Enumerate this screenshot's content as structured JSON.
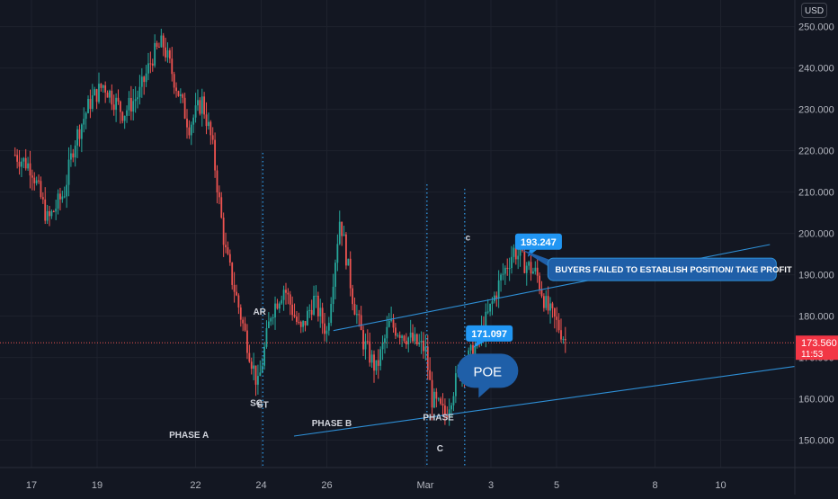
{
  "currency": "USD",
  "price_badge": {
    "price": "173.560",
    "timer": "11:53"
  },
  "chart_data": {
    "type": "candlestick",
    "title": "",
    "ylim": [
      143,
      256
    ],
    "yticks": [
      "150.000",
      "160.000",
      "170.000",
      "180.000",
      "190.000",
      "200.000",
      "210.000",
      "220.000",
      "230.000",
      "240.000",
      "250.000"
    ],
    "xticks": [
      "17",
      "19",
      "22",
      "24",
      "26",
      "Mar",
      "3",
      "5",
      "8",
      "10"
    ],
    "x_days": [
      0,
      2,
      5,
      7,
      9,
      12,
      14,
      16,
      19,
      21
    ],
    "price_path": [
      [
        -0.5,
        219
      ],
      [
        0,
        216
      ],
      [
        0.5,
        203
      ],
      [
        1,
        210
      ],
      [
        1.3,
        222
      ],
      [
        1.8,
        232
      ],
      [
        2.2,
        236
      ],
      [
        2.8,
        229
      ],
      [
        3.3,
        234
      ],
      [
        3.7,
        243
      ],
      [
        4,
        246
      ],
      [
        4.4,
        236
      ],
      [
        4.8,
        226
      ],
      [
        5.2,
        232
      ],
      [
        5.5,
        222
      ],
      [
        5.9,
        196
      ],
      [
        6.2,
        186
      ],
      [
        6.5,
        176
      ],
      [
        6.9,
        163
      ],
      [
        7.3,
        181
      ],
      [
        7.7,
        187
      ],
      [
        8.2,
        176
      ],
      [
        8.6,
        184
      ],
      [
        9,
        176
      ],
      [
        9.4,
        204
      ],
      [
        9.8,
        184
      ],
      [
        10.1,
        174
      ],
      [
        10.5,
        167
      ],
      [
        10.9,
        178
      ],
      [
        11.3,
        176
      ],
      [
        11.6,
        174
      ],
      [
        12,
        172
      ],
      [
        12.2,
        160
      ],
      [
        12.6,
        156
      ],
      [
        13,
        166
      ],
      [
        13.5,
        172
      ],
      [
        13.9,
        180
      ],
      [
        14.3,
        189
      ],
      [
        14.7,
        196
      ],
      [
        15,
        193
      ],
      [
        15.4,
        190
      ],
      [
        15.7,
        182
      ],
      [
        16.1,
        177
      ],
      [
        16.3,
        173.56
      ]
    ],
    "channel_upper": [
      [
        9.2,
        176.5
      ],
      [
        22.5,
        197.3
      ]
    ],
    "channel_lower": [
      [
        8.0,
        151
      ],
      [
        28.2,
        173.3
      ]
    ],
    "price_line": 173.56,
    "vlines": [
      7.05,
      12.05,
      13.2
    ],
    "annotations": [
      {
        "text": "SC",
        "x": 6.85,
        "y": 158.3
      },
      {
        "text": "ST",
        "x": 7.05,
        "y": 157.8
      },
      {
        "text": "AR",
        "x": 6.95,
        "y": 180.3
      },
      {
        "text": "PHASE A",
        "x": 4.8,
        "y": 150.6
      },
      {
        "text": "PHASE B",
        "x": 9.15,
        "y": 153.4
      },
      {
        "text": "PHASE",
        "x": 12.4,
        "y": 154.8
      },
      {
        "text": "C",
        "x": 12.45,
        "y": 147.3
      },
      {
        "text": "c",
        "x": 13.3,
        "y": 198.3
      }
    ],
    "callouts": [
      {
        "text": "193.247",
        "x": 15.45,
        "y": 198.0
      },
      {
        "text": "171.097",
        "x": 13.95,
        "y": 175.8
      },
      {
        "text": "BUYERS FAILED TO ESTABLISH POSITION/ TAKE PROFIT",
        "x": 15.9,
        "y": 191.2
      },
      {
        "text": "POE",
        "x": 13.9,
        "y": 166.8
      }
    ]
  }
}
